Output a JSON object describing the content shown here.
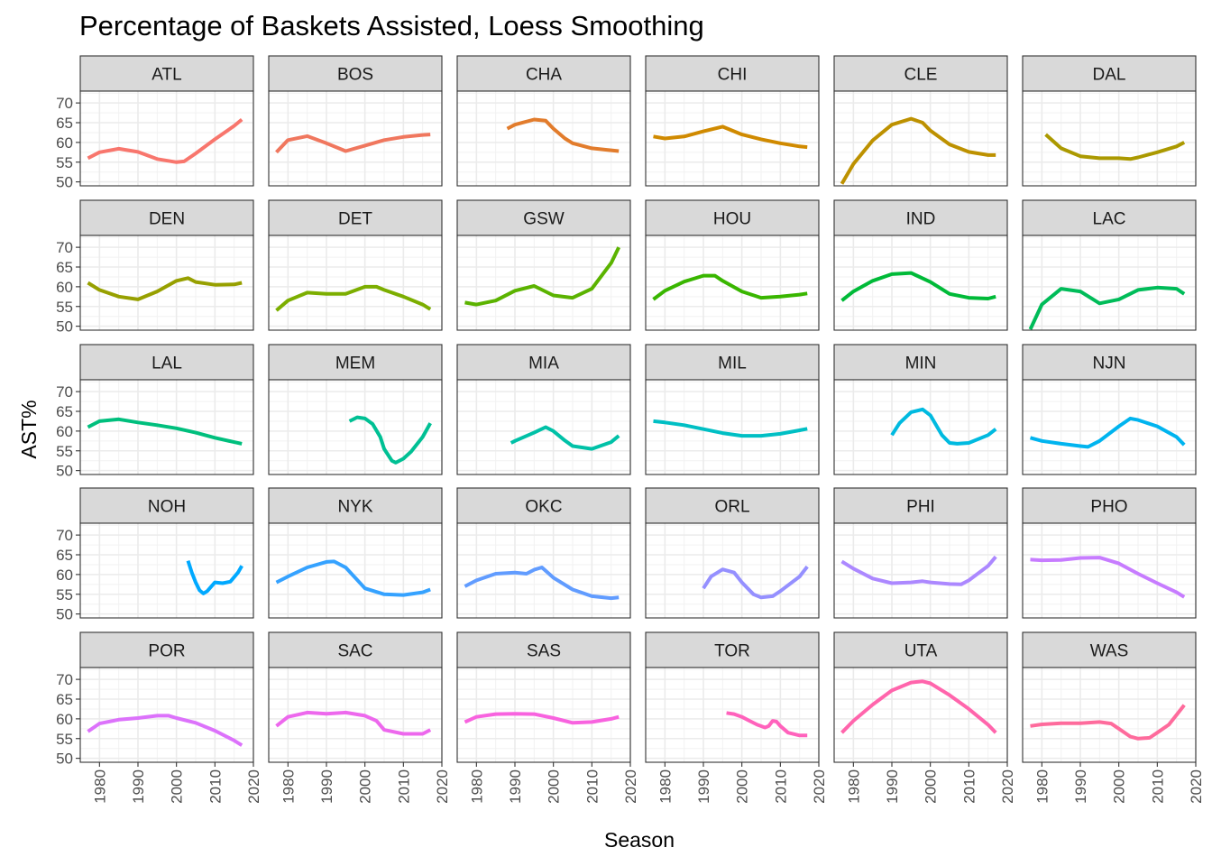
{
  "chart_data": {
    "type": "line",
    "title": "Percentage of Baskets Assisted, Loess Smoothing",
    "xlabel": "Season",
    "ylabel": "AST%",
    "xlim": [
      1975,
      2020
    ],
    "ylim": [
      49,
      73
    ],
    "x_ticks": [
      1980,
      1990,
      2000,
      2010,
      2020
    ],
    "y_ticks": [
      50,
      55,
      60,
      65,
      70
    ],
    "grid": true,
    "layout": "facet grid, 5 rows x 6 columns",
    "series": [
      {
        "name": "ATL",
        "color": "#F8766D",
        "x": [
          1977,
          1980,
          1985,
          1990,
          1995,
          2000,
          2002,
          2005,
          2010,
          2015,
          2017
        ],
        "values": [
          56,
          57.5,
          58.4,
          57.6,
          55.8,
          55,
          55.2,
          57.2,
          60.8,
          64.2,
          65.8
        ]
      },
      {
        "name": "BOS",
        "color": "#F0775E",
        "x": [
          1977,
          1980,
          1985,
          1990,
          1995,
          2000,
          2005,
          2010,
          2015,
          2017
        ],
        "values": [
          57.5,
          60.6,
          61.6,
          59.8,
          57.8,
          59.2,
          60.6,
          61.4,
          61.9,
          62
        ]
      },
      {
        "name": "CHA",
        "color": "#E27C2C",
        "x": [
          1988,
          1990,
          1995,
          1998,
          2000,
          2003,
          2005,
          2010,
          2015,
          2017
        ],
        "values": [
          63.5,
          64.5,
          65.8,
          65.5,
          63.5,
          61,
          59.8,
          58.5,
          58,
          57.8
        ]
      },
      {
        "name": "CHI",
        "color": "#D08A00",
        "x": [
          1977,
          1980,
          1985,
          1990,
          1995,
          2000,
          2005,
          2010,
          2015,
          2017
        ],
        "values": [
          61.5,
          61,
          61.5,
          62.8,
          64,
          62,
          60.8,
          59.8,
          59,
          58.8
        ]
      },
      {
        "name": "CLE",
        "color": "#BD9100",
        "x": [
          1977,
          1980,
          1985,
          1990,
          1995,
          1998,
          2000,
          2005,
          2010,
          2015,
          2017
        ],
        "values": [
          49.5,
          54.5,
          60.5,
          64.5,
          66,
          65,
          63,
          59.5,
          57.6,
          56.8,
          56.8
        ]
      },
      {
        "name": "DAL",
        "color": "#AB9900",
        "x": [
          1981,
          1985,
          1990,
          1995,
          2000,
          2003,
          2005,
          2010,
          2015,
          2017
        ],
        "values": [
          62,
          58.5,
          56.5,
          56,
          56,
          55.8,
          56.2,
          57.5,
          59,
          60
        ]
      },
      {
        "name": "DEN",
        "color": "#97A000",
        "x": [
          1977,
          1980,
          1985,
          1990,
          1995,
          2000,
          2003,
          2005,
          2010,
          2015,
          2017
        ],
        "values": [
          61,
          59.2,
          57.5,
          56.8,
          58.8,
          61.5,
          62.2,
          61.2,
          60.5,
          60.6,
          61
        ]
      },
      {
        "name": "DET",
        "color": "#7CAE00",
        "x": [
          1977,
          1980,
          1985,
          1990,
          1995,
          2000,
          2003,
          2005,
          2010,
          2015,
          2017
        ],
        "values": [
          54,
          56.5,
          58.5,
          58.2,
          58.2,
          60,
          60,
          59.2,
          57.5,
          55.5,
          54.3
        ]
      },
      {
        "name": "GSW",
        "color": "#5BB300",
        "x": [
          1977,
          1980,
          1985,
          1990,
          1995,
          2000,
          2005,
          2010,
          2015,
          2017
        ],
        "values": [
          56,
          55.5,
          56.5,
          59,
          60.2,
          57.8,
          57.2,
          59.5,
          66,
          70
        ]
      },
      {
        "name": "HOU",
        "color": "#39B600",
        "x": [
          1977,
          1980,
          1985,
          1990,
          1993,
          1995,
          2000,
          2005,
          2010,
          2015,
          2017
        ],
        "values": [
          56.8,
          59,
          61.3,
          62.8,
          62.8,
          61.5,
          58.8,
          57.2,
          57.5,
          58,
          58.3
        ]
      },
      {
        "name": "IND",
        "color": "#00BA38",
        "x": [
          1977,
          1980,
          1985,
          1990,
          1995,
          2000,
          2005,
          2010,
          2015,
          2017
        ],
        "values": [
          56.5,
          58.8,
          61.5,
          63.2,
          63.5,
          61.2,
          58.2,
          57.2,
          57,
          57.5
        ]
      },
      {
        "name": "LAC",
        "color": "#00BC59",
        "x": [
          1977,
          1980,
          1985,
          1990,
          1995,
          2000,
          2005,
          2010,
          2015,
          2017
        ],
        "values": [
          49.2,
          55.5,
          59.5,
          58.8,
          55.8,
          56.8,
          59.2,
          59.8,
          59.5,
          58.2
        ]
      },
      {
        "name": "LAL",
        "color": "#00BF7D",
        "x": [
          1977,
          1980,
          1985,
          1990,
          1995,
          2000,
          2005,
          2010,
          2015,
          2017
        ],
        "values": [
          61,
          62.5,
          63,
          62.2,
          61.5,
          60.7,
          59.6,
          58.3,
          57.2,
          56.8
        ]
      },
      {
        "name": "MEM",
        "color": "#00C094",
        "x": [
          1996,
          1998,
          2000,
          2002,
          2004,
          2005,
          2007,
          2008,
          2010,
          2012,
          2015,
          2017
        ],
        "values": [
          62.5,
          63.5,
          63.2,
          61.8,
          58.5,
          55.5,
          52.5,
          52,
          53,
          54.8,
          58.5,
          62
        ]
      },
      {
        "name": "MIA",
        "color": "#00C1A7",
        "x": [
          1989,
          1990,
          1995,
          1998,
          2000,
          2003,
          2005,
          2010,
          2015,
          2017
        ],
        "values": [
          57,
          57.5,
          59.6,
          61,
          60,
          57.6,
          56.2,
          55.5,
          57.2,
          58.8
        ]
      },
      {
        "name": "MIL",
        "color": "#00BFC4",
        "x": [
          1977,
          1980,
          1985,
          1990,
          1995,
          2000,
          2005,
          2010,
          2015,
          2017
        ],
        "values": [
          62.5,
          62.2,
          61.5,
          60.5,
          59.5,
          58.8,
          58.8,
          59.3,
          60.2,
          60.6
        ]
      },
      {
        "name": "MIN",
        "color": "#00BAE0",
        "x": [
          1990,
          1992,
          1995,
          1998,
          2000,
          2003,
          2005,
          2007,
          2010,
          2015,
          2017
        ],
        "values": [
          59,
          62,
          64.8,
          65.5,
          64,
          59,
          57,
          56.8,
          57,
          59,
          60.5
        ]
      },
      {
        "name": "NJN",
        "color": "#00B4EF",
        "x": [
          1977,
          1980,
          1985,
          1990,
          1992,
          1995,
          2000,
          2003,
          2005,
          2010,
          2015,
          2017
        ],
        "values": [
          58.3,
          57.5,
          56.8,
          56.2,
          56,
          57.5,
          61.2,
          63.2,
          62.8,
          61.2,
          58.5,
          56.5
        ]
      },
      {
        "name": "NOH",
        "color": "#00A9FF",
        "x": [
          2003,
          2004,
          2005,
          2006,
          2007,
          2008,
          2010,
          2012,
          2014,
          2016,
          2017
        ],
        "values": [
          63.5,
          60.5,
          58,
          56,
          55.2,
          55.8,
          58,
          57.8,
          58.2,
          60.5,
          62.2
        ]
      },
      {
        "name": "NYK",
        "color": "#35A2FF",
        "x": [
          1977,
          1980,
          1985,
          1990,
          1992,
          1995,
          2000,
          2005,
          2010,
          2015,
          2017
        ],
        "values": [
          58,
          59.5,
          61.8,
          63.2,
          63.3,
          61.8,
          56.5,
          55,
          54.8,
          55.5,
          56.2
        ]
      },
      {
        "name": "OKC",
        "color": "#619CFF",
        "x": [
          1977,
          1980,
          1985,
          1990,
          1993,
          1995,
          1997,
          2000,
          2005,
          2010,
          2015,
          2017
        ],
        "values": [
          57,
          58.5,
          60.2,
          60.5,
          60.2,
          61.2,
          61.8,
          59.2,
          56.2,
          54.5,
          54,
          54.2
        ]
      },
      {
        "name": "ORL",
        "color": "#9590FF",
        "x": [
          1990,
          1992,
          1995,
          1998,
          2000,
          2003,
          2005,
          2008,
          2010,
          2015,
          2017
        ],
        "values": [
          56.5,
          59.5,
          61.3,
          60.5,
          58,
          55,
          54.2,
          54.5,
          55.8,
          59.5,
          62
        ]
      },
      {
        "name": "PHI",
        "color": "#AC88FF",
        "x": [
          1977,
          1980,
          1985,
          1990,
          1995,
          1998,
          2000,
          2005,
          2008,
          2010,
          2015,
          2017
        ],
        "values": [
          63.3,
          61.5,
          59,
          57.8,
          58,
          58.3,
          58,
          57.6,
          57.5,
          58.5,
          62.2,
          64.5
        ]
      },
      {
        "name": "PHO",
        "color": "#C77CFF",
        "x": [
          1977,
          1980,
          1985,
          1990,
          1995,
          2000,
          2005,
          2010,
          2015,
          2017
        ],
        "values": [
          63.8,
          63.6,
          63.7,
          64.2,
          64.3,
          62.8,
          60.2,
          57.8,
          55.5,
          54.3
        ]
      },
      {
        "name": "POR",
        "color": "#DC72FB",
        "x": [
          1977,
          1980,
          1985,
          1990,
          1995,
          1998,
          2000,
          2005,
          2010,
          2015,
          2017
        ],
        "values": [
          56.8,
          58.8,
          59.8,
          60.2,
          60.8,
          60.8,
          60.2,
          59,
          57,
          54.5,
          53.3
        ]
      },
      {
        "name": "SAC",
        "color": "#ED68ED",
        "x": [
          1977,
          1980,
          1985,
          1990,
          1995,
          2000,
          2003,
          2005,
          2010,
          2015,
          2017
        ],
        "values": [
          58.2,
          60.5,
          61.6,
          61.3,
          61.6,
          60.8,
          59.5,
          57.2,
          56.2,
          56.2,
          57.2
        ]
      },
      {
        "name": "SAS",
        "color": "#F863DF",
        "x": [
          1977,
          1980,
          1985,
          1990,
          1995,
          2000,
          2005,
          2010,
          2015,
          2017
        ],
        "values": [
          59.2,
          60.5,
          61.2,
          61.3,
          61.2,
          60.2,
          59,
          59.2,
          60,
          60.5
        ]
      },
      {
        "name": "TOR",
        "color": "#FF62BC",
        "x": [
          1996,
          1998,
          2000,
          2002,
          2004,
          2006,
          2007,
          2008,
          2009,
          2010,
          2012,
          2015,
          2017
        ],
        "values": [
          61.5,
          61.2,
          60.5,
          59.5,
          58.5,
          57.8,
          58.2,
          59.5,
          59.3,
          58.2,
          56.5,
          55.8,
          55.8
        ]
      },
      {
        "name": "UTA",
        "color": "#FF65AC",
        "x": [
          1977,
          1980,
          1985,
          1990,
          1995,
          1998,
          2000,
          2005,
          2010,
          2015,
          2017
        ],
        "values": [
          56.5,
          59.5,
          63.6,
          67.2,
          69.2,
          69.5,
          69,
          66,
          62.5,
          58.5,
          56.5
        ]
      },
      {
        "name": "WAS",
        "color": "#FE6B9C",
        "x": [
          1977,
          1980,
          1985,
          1990,
          1995,
          1998,
          2000,
          2003,
          2005,
          2008,
          2010,
          2013,
          2015,
          2017
        ],
        "values": [
          58.2,
          58.6,
          58.9,
          58.9,
          59.2,
          58.8,
          57.5,
          55.5,
          55,
          55.2,
          56.5,
          58.5,
          61,
          63.5
        ]
      }
    ]
  }
}
